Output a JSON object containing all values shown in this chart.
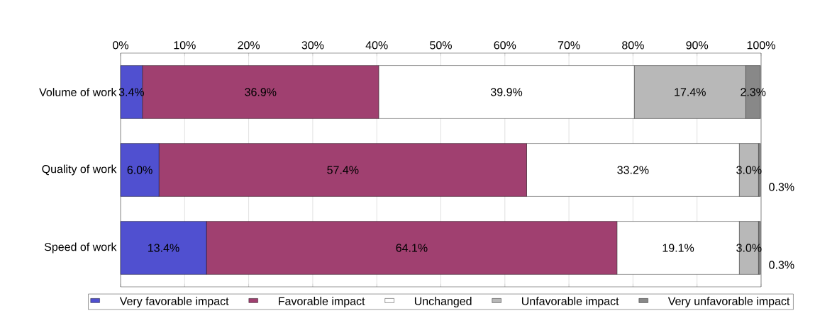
{
  "chart_data": {
    "type": "bar",
    "orientation": "horizontal",
    "stacked": true,
    "categories": [
      "Volume of work",
      "Quality of work",
      "Speed of work"
    ],
    "series": [
      {
        "name": "Very favorable impact",
        "color": "#5050d0",
        "values": [
          3.4,
          6.0,
          13.4
        ],
        "value_labels": [
          "3.4%",
          "6.0%",
          "13.4%"
        ]
      },
      {
        "name": "Favorable impact",
        "color": "#a04070",
        "values": [
          36.9,
          57.4,
          64.1
        ],
        "value_labels": [
          "36.9%",
          "57.4%",
          "64.1%"
        ]
      },
      {
        "name": "Unchanged",
        "color": "#ffffff",
        "values": [
          39.9,
          33.2,
          19.1
        ],
        "value_labels": [
          "39.9%",
          "33.2%",
          "19.1%"
        ]
      },
      {
        "name": "Unfavorable impact",
        "color": "#b8b8b8",
        "values": [
          17.4,
          3.0,
          3.0
        ],
        "value_labels": [
          "17.4%",
          "3.0%",
          "3.0%"
        ]
      },
      {
        "name": "Very unfavorable impact",
        "color": "#888888",
        "values": [
          2.3,
          0.3,
          0.3
        ],
        "value_labels": [
          "2.3%",
          "0.3%",
          "0.3%"
        ]
      }
    ],
    "xlim": [
      0,
      100
    ],
    "xticks": [
      {
        "value": 0,
        "label": "0%"
      },
      {
        "value": 10,
        "label": "10%"
      },
      {
        "value": 20,
        "label": "20%"
      },
      {
        "value": 30,
        "label": "30%"
      },
      {
        "value": 40,
        "label": "40%"
      },
      {
        "value": 50,
        "label": "50%"
      },
      {
        "value": 60,
        "label": "60%"
      },
      {
        "value": 70,
        "label": "70%"
      },
      {
        "value": 80,
        "label": "80%"
      },
      {
        "value": 90,
        "label": "90%"
      },
      {
        "value": 100,
        "label": "100%"
      }
    ],
    "grid": "x",
    "legend": "bottom"
  }
}
